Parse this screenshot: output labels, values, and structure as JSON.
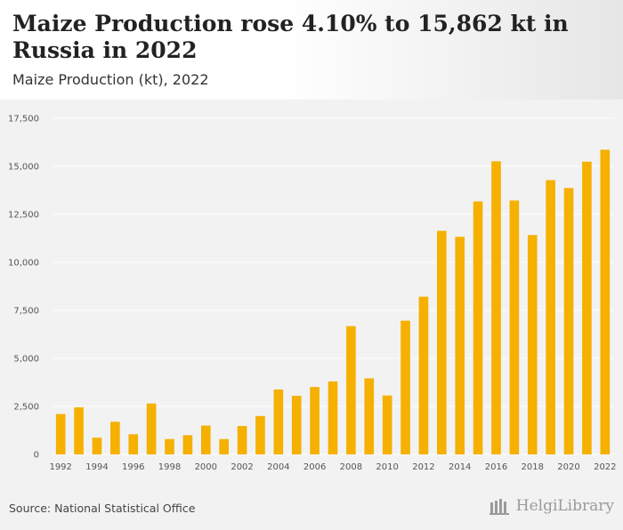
{
  "header": {
    "title": "Maize Production rose 4.10% to 15,862 kt in Russia in 2022",
    "subtitle": "Maize Production (kt), 2022"
  },
  "footer": {
    "source": "Source: National Statistical Office",
    "brand": "HelgiLibrary"
  },
  "colors": {
    "bar": "#f5b000",
    "grid": "#ffffff",
    "axis_text": "#555555"
  },
  "chart_data": {
    "type": "bar",
    "title": "Maize Production (kt), 2022",
    "xlabel": "",
    "ylabel": "",
    "ylim": [
      0,
      17500
    ],
    "yticks": [
      0,
      2500,
      5000,
      7500,
      10000,
      12500,
      15000,
      17500
    ],
    "ytick_labels": [
      "0",
      "2,500",
      "5,000",
      "7,500",
      "10,000",
      "12,500",
      "15,000",
      "17,500"
    ],
    "grid": true,
    "categories": [
      "1992",
      "1993",
      "1994",
      "1995",
      "1996",
      "1997",
      "1998",
      "1999",
      "2000",
      "2001",
      "2002",
      "2003",
      "2004",
      "2005",
      "2006",
      "2007",
      "2008",
      "2009",
      "2010",
      "2011",
      "2012",
      "2013",
      "2014",
      "2015",
      "2016",
      "2017",
      "2018",
      "2019",
      "2020",
      "2021",
      "2022"
    ],
    "xtick_labels": [
      "1992",
      "",
      "1994",
      "",
      "1996",
      "",
      "1998",
      "",
      "2000",
      "",
      "2002",
      "",
      "2004",
      "",
      "2006",
      "",
      "2008",
      "",
      "2010",
      "",
      "2012",
      "",
      "2014",
      "",
      "2016",
      "",
      "2018",
      "",
      "2020",
      "",
      "2022"
    ],
    "values": [
      2100,
      2450,
      870,
      1700,
      1050,
      2650,
      800,
      1000,
      1500,
      800,
      1480,
      2000,
      3380,
      3050,
      3510,
      3800,
      6680,
      3960,
      3070,
      6960,
      8210,
      11640,
      11330,
      13170,
      15260,
      13220,
      11420,
      14280,
      13870,
      15240,
      15862
    ]
  }
}
